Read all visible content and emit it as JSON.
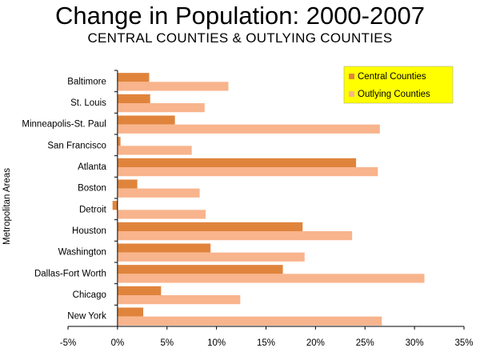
{
  "title": "Change in Population: 2000-2007",
  "subtitle": "CENTRAL COUNTIES & OUTLYING COUNTIES",
  "colors": {
    "central": "#e0843c",
    "outlying": "#f8b48c",
    "legend_bg": "#ffff00",
    "axis": "#000000"
  },
  "chart_data": {
    "type": "bar",
    "orientation": "horizontal",
    "title": "Change in Population: 2000-2007",
    "subtitle": "CENTRAL COUNTIES & OUTLYING COUNTIES",
    "xlabel": "",
    "ylabel": "Metropolitan Areas",
    "xlim": [
      -0.05,
      0.35
    ],
    "x_ticks": [
      -0.05,
      0,
      0.05,
      0.1,
      0.15,
      0.2,
      0.25,
      0.3,
      0.35
    ],
    "x_tick_labels": [
      "-5%",
      "0%",
      "5%",
      "10%",
      "15%",
      "20%",
      "25%",
      "30%",
      "35%"
    ],
    "grid": false,
    "legend_position": "top-right",
    "categories": [
      "Baltimore",
      "St. Louis",
      "Minneapolis-St. Paul",
      "San Francisco",
      "Atlanta",
      "Boston",
      "Detroit",
      "Houston",
      "Washington",
      "Dallas-Fort Worth",
      "Chicago",
      "New York"
    ],
    "series": [
      {
        "name": "Central Counties",
        "values": [
          0.032,
          0.033,
          0.058,
          0.003,
          0.241,
          0.02,
          -0.005,
          0.187,
          0.094,
          0.167,
          0.044,
          0.026
        ]
      },
      {
        "name": "Outlying Counties",
        "values": [
          0.112,
          0.088,
          0.265,
          0.075,
          0.263,
          0.083,
          0.089,
          0.237,
          0.189,
          0.31,
          0.124,
          0.267
        ]
      }
    ]
  }
}
